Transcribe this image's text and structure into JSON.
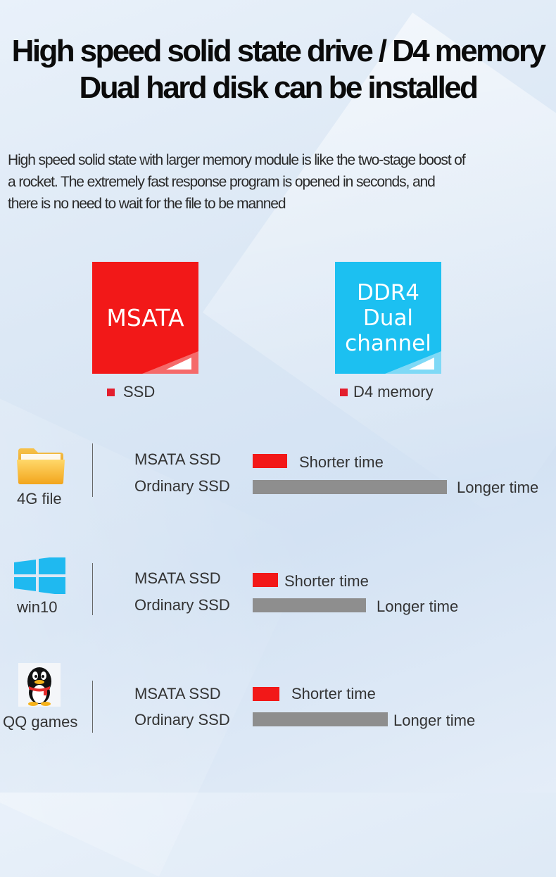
{
  "header": {
    "title_line1": "High speed solid state drive / D4 memory",
    "title_line2": "Dual hard disk can be installed"
  },
  "description": [
    "High speed solid state with larger memory module is like the two-stage boost of",
    "a rocket. The extremely fast response program is opened in seconds, and",
    "there is no need to wait for the file to be manned"
  ],
  "tiles": {
    "msata": {
      "text": "MSATA",
      "color": "#f21818",
      "legend": "SSD"
    },
    "ddr": {
      "lines": [
        "DDR4",
        "Dual",
        "channel"
      ],
      "color": "#1cc0f1",
      "legend": "D4 memory"
    }
  },
  "comparisons": [
    {
      "icon": "folder-icon",
      "label": "4G file",
      "msata_label": "MSATA SSD",
      "msata_text": "Shorter time",
      "ordinary_label": "Ordinary SSD",
      "ordinary_text": "Longer time"
    },
    {
      "icon": "windows-logo-icon",
      "label": "win10",
      "msata_label": "MSATA SSD",
      "msata_text": "Shorter time",
      "ordinary_label": "Ordinary SSD",
      "ordinary_text": "Longer time"
    },
    {
      "icon": "qq-penguin-icon",
      "label": "QQ games",
      "msata_label": "MSATA SSD",
      "msata_text": "Shorter time",
      "ordinary_label": "Ordinary SSD",
      "ordinary_text": "Longer time"
    }
  ],
  "colors": {
    "fast_bar": "#f21818",
    "slow_bar": "#8e8e8e"
  }
}
